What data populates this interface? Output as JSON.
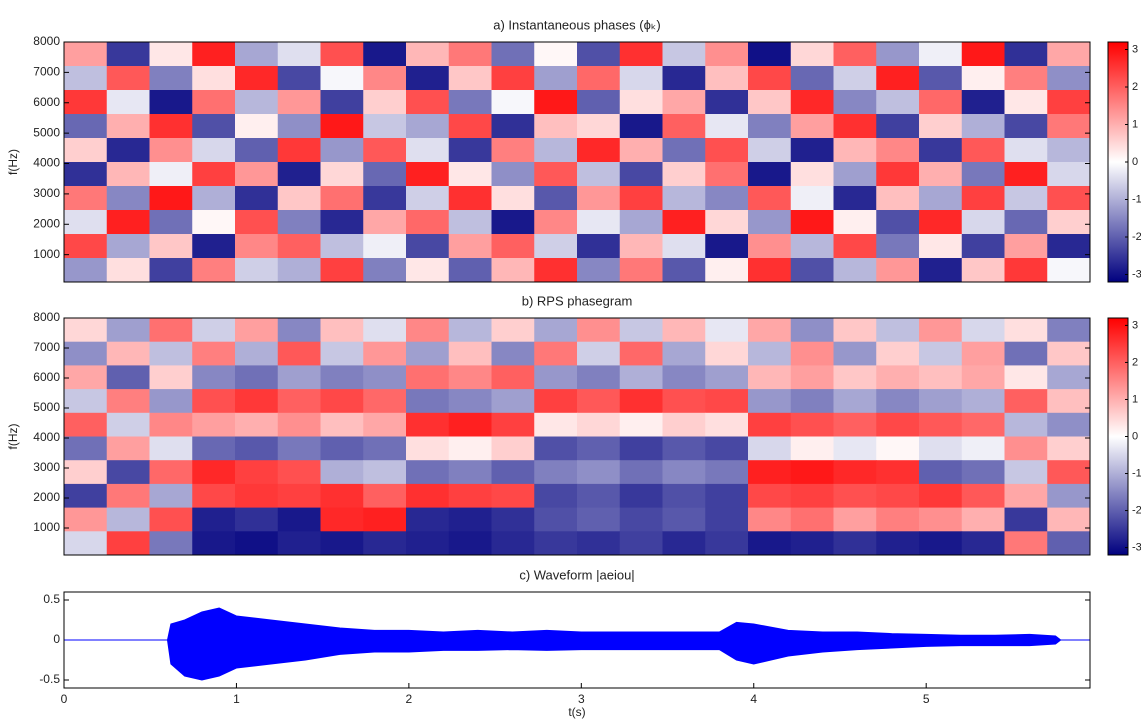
{
  "chart_data": [
    {
      "type": "heatmap",
      "title": "a) Instantaneous phases (ϕₖ)",
      "ylabel": "f(Hz)",
      "xlim": [
        0,
        5.95
      ],
      "ylim": [
        100,
        8000
      ],
      "yticks": [
        1000,
        2000,
        3000,
        4000,
        5000,
        6000,
        7000,
        8000
      ],
      "clim": [
        -3.2,
        3.2
      ],
      "cticks": [
        -3,
        -2,
        -1,
        0,
        1,
        2,
        3
      ],
      "colormap": [
        "#00007f",
        "#ffffff",
        "#ff0000"
      ],
      "z": [
        [
          1.2,
          -2.5,
          0.3,
          2.8,
          -1.1,
          -0.4,
          2.2,
          -2.9,
          0.9,
          1.7,
          -1.8,
          0.1,
          -2.2,
          2.6,
          -0.7,
          1.4,
          -3.0,
          0.5,
          2.0,
          -1.3,
          -0.2,
          2.9,
          -2.6,
          1.1
        ],
        [
          -0.8,
          2.1,
          -1.6,
          0.4,
          2.7,
          -2.3,
          -0.1,
          1.5,
          -2.8,
          0.7,
          2.4,
          -1.2,
          1.9,
          -0.5,
          -2.7,
          0.8,
          2.3,
          -1.9,
          -0.6,
          2.8,
          -2.1,
          0.2,
          1.6,
          -1.4
        ],
        [
          2.5,
          -0.3,
          -2.9,
          1.8,
          -0.9,
          1.3,
          -2.4,
          0.6,
          2.2,
          -1.7,
          -0.1,
          2.9,
          -2.0,
          0.4,
          1.1,
          -2.6,
          0.7,
          2.7,
          -1.5,
          -0.8,
          1.9,
          -2.8,
          0.3,
          2.4
        ],
        [
          -1.9,
          1.0,
          2.6,
          -2.2,
          0.2,
          -1.4,
          2.9,
          -0.7,
          -1.1,
          2.3,
          -2.6,
          0.8,
          0.5,
          -2.9,
          2.0,
          -0.3,
          -1.6,
          1.2,
          2.6,
          -2.4,
          0.6,
          -1.0,
          -2.3,
          1.7
        ],
        [
          0.6,
          -2.7,
          1.4,
          -0.5,
          -2.0,
          2.5,
          -1.3,
          2.1,
          -0.4,
          -2.5,
          1.6,
          -0.9,
          2.7,
          1.0,
          -1.8,
          2.2,
          -0.6,
          -2.8,
          0.9,
          1.5,
          -2.5,
          2.1,
          -0.4,
          -0.9
        ],
        [
          -2.6,
          0.9,
          -0.2,
          2.4,
          1.3,
          -2.8,
          0.5,
          -1.9,
          2.8,
          0.3,
          -1.4,
          2.1,
          -0.8,
          -2.3,
          0.6,
          1.8,
          -2.9,
          0.4,
          -1.2,
          2.5,
          1.0,
          -1.7,
          2.8,
          -0.5
        ],
        [
          1.7,
          -1.5,
          2.9,
          -1.0,
          -2.6,
          0.7,
          1.8,
          -2.5,
          -0.6,
          2.6,
          0.4,
          -2.1,
          1.3,
          2.4,
          -0.9,
          -1.5,
          2.1,
          -0.2,
          -2.7,
          0.8,
          -1.1,
          2.4,
          -0.7,
          2.2
        ],
        [
          -0.4,
          2.8,
          -1.8,
          0.1,
          2.2,
          -1.6,
          -2.7,
          1.1,
          1.9,
          -0.8,
          -2.9,
          1.5,
          -0.3,
          -1.1,
          2.8,
          0.5,
          -1.3,
          2.9,
          0.2,
          -2.2,
          2.7,
          -0.5,
          -1.9,
          0.6
        ],
        [
          2.3,
          -1.1,
          0.7,
          -2.8,
          1.5,
          2.0,
          -0.8,
          -0.2,
          -2.3,
          1.2,
          2.0,
          -0.6,
          -2.6,
          0.9,
          -0.4,
          -2.9,
          1.4,
          -0.9,
          2.3,
          -1.7,
          0.3,
          -2.4,
          1.2,
          -2.7
        ],
        [
          -1.3,
          0.4,
          -2.4,
          1.6,
          -0.6,
          -1.0,
          2.4,
          -1.6,
          0.3,
          -2.0,
          0.9,
          2.6,
          -1.5,
          1.7,
          -2.1,
          0.2,
          2.6,
          -2.2,
          -0.9,
          1.3,
          -2.8,
          0.7,
          2.5,
          -0.1
        ]
      ]
    },
    {
      "type": "heatmap",
      "title": "b) RPS phasegram",
      "ylabel": "f(Hz)",
      "xlim": [
        0,
        5.95
      ],
      "ylim": [
        100,
        8000
      ],
      "yticks": [
        1000,
        2000,
        3000,
        4000,
        5000,
        6000,
        7000,
        8000
      ],
      "clim": [
        -3.2,
        3.2
      ],
      "cticks": [
        -3,
        -2,
        -1,
        0,
        1,
        2,
        3
      ],
      "colormap": [
        "#00007f",
        "#ffffff",
        "#ff0000"
      ],
      "z": [
        [
          0.5,
          -1.2,
          1.8,
          -0.6,
          1.2,
          -1.5,
          0.8,
          -0.4,
          1.5,
          -0.9,
          0.6,
          -1.1,
          1.4,
          -0.7,
          0.9,
          -0.3,
          1.1,
          -1.4,
          0.7,
          -0.8,
          1.3,
          -0.5,
          0.4,
          -1.6
        ],
        [
          -1.4,
          0.9,
          -0.8,
          1.6,
          -1.0,
          2.1,
          -0.7,
          1.3,
          -1.2,
          0.8,
          -1.5,
          1.7,
          -0.6,
          1.9,
          -1.1,
          0.5,
          -0.9,
          1.4,
          -1.3,
          0.6,
          -0.7,
          1.2,
          -1.8,
          0.7
        ],
        [
          1.1,
          -2.0,
          0.6,
          -1.5,
          -1.8,
          -1.2,
          -1.6,
          -1.4,
          1.8,
          1.5,
          2.0,
          -1.3,
          -1.6,
          -1.0,
          -1.5,
          -1.2,
          0.9,
          1.2,
          0.7,
          1.0,
          0.8,
          1.1,
          0.3,
          -1.1
        ],
        [
          -0.7,
          1.6,
          -1.3,
          2.2,
          2.5,
          2.0,
          2.3,
          1.9,
          -1.7,
          -1.5,
          -1.2,
          2.4,
          2.1,
          2.6,
          2.2,
          2.3,
          -1.3,
          -1.6,
          -1.1,
          -1.5,
          -1.2,
          -1.0,
          2.0,
          0.8
        ],
        [
          2.0,
          -0.6,
          1.5,
          1.2,
          1.0,
          1.4,
          0.8,
          1.1,
          2.6,
          2.8,
          2.4,
          0.3,
          0.5,
          0.2,
          0.6,
          0.4,
          2.4,
          2.2,
          2.0,
          2.3,
          2.1,
          1.9,
          -0.9,
          -1.4
        ],
        [
          -1.8,
          1.2,
          -0.4,
          -1.9,
          -2.1,
          -1.7,
          -2.0,
          -1.8,
          0.4,
          0.2,
          0.6,
          -2.2,
          -2.0,
          -2.4,
          -2.1,
          -2.3,
          -0.5,
          0.2,
          -0.3,
          0.1,
          -0.4,
          -0.2,
          1.4,
          0.6
        ],
        [
          0.6,
          -2.3,
          1.9,
          2.7,
          2.4,
          2.2,
          -1.0,
          -0.8,
          -1.8,
          -1.6,
          -2.0,
          -1.6,
          -1.4,
          -1.8,
          -1.5,
          -1.7,
          2.8,
          2.9,
          2.7,
          2.6,
          -2.0,
          -1.8,
          -0.7,
          2.1
        ],
        [
          -2.4,
          1.7,
          -1.1,
          2.3,
          2.5,
          2.4,
          2.6,
          2.0,
          2.6,
          2.4,
          2.3,
          -2.3,
          -2.1,
          -2.5,
          -2.2,
          -2.4,
          2.3,
          2.4,
          2.2,
          2.3,
          2.5,
          2.1,
          1.1,
          -1.3
        ],
        [
          1.3,
          -0.9,
          2.2,
          -2.8,
          -2.6,
          -2.9,
          2.7,
          2.8,
          -2.7,
          -2.8,
          -2.6,
          -2.2,
          -2.0,
          -2.3,
          -2.1,
          -2.4,
          1.5,
          1.8,
          1.2,
          1.6,
          1.4,
          1.0,
          -2.5,
          0.9
        ],
        [
          -0.5,
          2.4,
          -1.7,
          -2.9,
          -3.0,
          -2.8,
          -2.9,
          -2.7,
          -2.8,
          -2.9,
          -2.7,
          -2.5,
          -2.6,
          -2.4,
          -2.7,
          -2.5,
          -2.9,
          -2.8,
          -2.6,
          -2.8,
          -2.9,
          -2.7,
          1.7,
          -2.0
        ]
      ]
    },
    {
      "type": "waveform",
      "title": "c) Waveform |aeiou|",
      "xlabel": "t(s)",
      "color": "#0000ff",
      "xlim": [
        0,
        5.95
      ],
      "xticks": [
        0,
        1,
        2,
        3,
        4,
        5
      ],
      "ylim": [
        -0.6,
        0.6
      ],
      "yticks": [
        -0.5,
        0,
        0.5
      ],
      "x": [
        0,
        0.6,
        0.62,
        0.7,
        0.8,
        0.9,
        1.0,
        1.2,
        1.4,
        1.6,
        1.8,
        2.0,
        2.2,
        2.4,
        2.6,
        2.8,
        3.0,
        3.2,
        3.4,
        3.6,
        3.8,
        3.9,
        4.0,
        4.2,
        4.4,
        4.6,
        4.8,
        5.0,
        5.2,
        5.4,
        5.6,
        5.75,
        5.78,
        5.95
      ],
      "upper": [
        0,
        0,
        0.2,
        0.25,
        0.35,
        0.4,
        0.3,
        0.25,
        0.2,
        0.15,
        0.12,
        0.12,
        0.1,
        0.12,
        0.1,
        0.12,
        0.1,
        0.1,
        0.1,
        0.1,
        0.1,
        0.22,
        0.2,
        0.12,
        0.1,
        0.1,
        0.08,
        0.07,
        0.06,
        0.06,
        0.07,
        0.05,
        0,
        0
      ],
      "lower": [
        0,
        0,
        -0.3,
        -0.45,
        -0.5,
        -0.45,
        -0.35,
        -0.3,
        -0.25,
        -0.18,
        -0.15,
        -0.15,
        -0.13,
        -0.13,
        -0.12,
        -0.13,
        -0.12,
        -0.12,
        -0.12,
        -0.12,
        -0.12,
        -0.25,
        -0.3,
        -0.2,
        -0.15,
        -0.12,
        -0.1,
        -0.08,
        -0.07,
        -0.07,
        -0.07,
        -0.05,
        0,
        0
      ]
    }
  ]
}
